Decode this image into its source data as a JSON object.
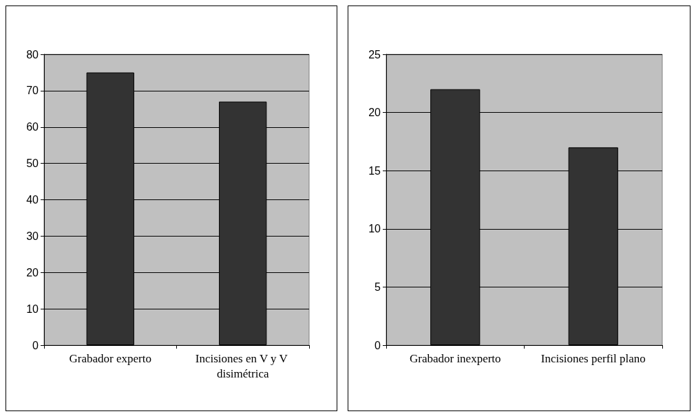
{
  "chart_data": [
    {
      "type": "bar",
      "categories": [
        "Grabador experto",
        "Incisiones en V y V disimétrica"
      ],
      "values": [
        75,
        67
      ],
      "color": "#333333",
      "ylim": [
        0,
        80
      ],
      "yticks": [
        0,
        10,
        20,
        30,
        40,
        50,
        60,
        70,
        80
      ],
      "grid": "y"
    },
    {
      "type": "bar",
      "categories": [
        "Grabador inexperto",
        "Incisiones perfil plano"
      ],
      "values": [
        22,
        17
      ],
      "color": "#333333",
      "ylim": [
        0,
        25
      ],
      "yticks": [
        0,
        5,
        10,
        15,
        20,
        25
      ],
      "grid": "y"
    }
  ]
}
